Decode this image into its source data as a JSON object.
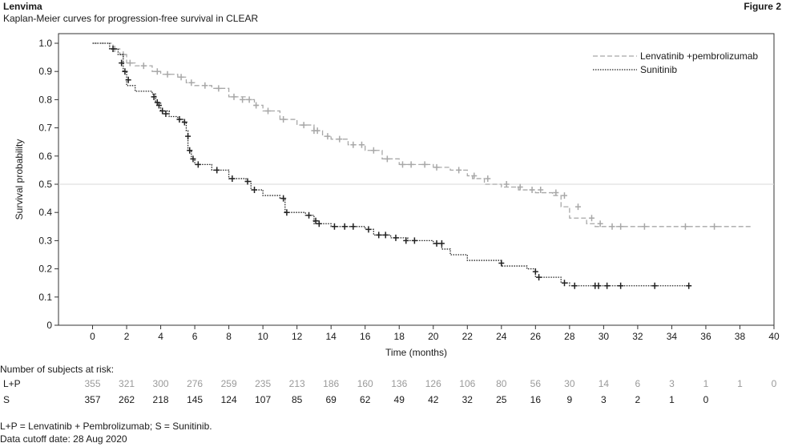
{
  "header": {
    "title": "Lenvima",
    "subtitle": "Kaplan-Meier curves for progression-free survival in CLEAR",
    "figure": "Figure 2"
  },
  "chart_data": {
    "type": "line",
    "xlabel": "Time (months)",
    "ylabel": "Survival probability",
    "xlim": [
      -2,
      40
    ],
    "ylim": [
      0,
      1.0
    ],
    "xticks": [
      0,
      2,
      4,
      6,
      8,
      10,
      12,
      14,
      16,
      18,
      20,
      22,
      24,
      26,
      28,
      30,
      32,
      34,
      36,
      38,
      40
    ],
    "yticks": [
      0,
      0.1,
      0.2,
      0.3,
      0.4,
      0.5,
      0.6,
      0.7,
      0.8,
      0.9,
      1.0
    ],
    "xtick_labels": [
      "0",
      "2",
      "4",
      "6",
      "8",
      "10",
      "12",
      "14",
      "16",
      "18",
      "20",
      "22",
      "24",
      "26",
      "28",
      "30",
      "32",
      "34",
      "36",
      "38",
      "40"
    ],
    "ytick_labels": [
      "0",
      "0.1",
      "0.2",
      "0.3",
      "0.4",
      "0.5",
      "0.6",
      "0.7",
      "0.8",
      "0.9",
      "1.0"
    ],
    "reference_line_y": 0.5,
    "legend_position": "top-right",
    "series": [
      {
        "name": "Lenvatinib +pembrolizumab",
        "color": "#a8a8a8",
        "style": "dashed",
        "x": [
          0,
          1.2,
          1.6,
          2.0,
          2.5,
          3.5,
          4.0,
          5.0,
          5.5,
          6.0,
          7.0,
          8.0,
          9.0,
          9.5,
          10.0,
          11.0,
          12.0,
          13.0,
          13.5,
          14.0,
          15.0,
          16.0,
          17.0,
          18.0,
          18.5,
          20.0,
          21.0,
          22.0,
          22.3,
          23.0,
          24.0,
          25.0,
          26.0,
          27.0,
          27.5,
          28.0,
          29.0,
          29.5,
          30.0,
          32.0,
          34.0,
          36.0,
          38.0,
          38.7
        ],
        "y": [
          1.0,
          0.98,
          0.96,
          0.93,
          0.92,
          0.9,
          0.89,
          0.88,
          0.86,
          0.85,
          0.84,
          0.81,
          0.8,
          0.78,
          0.76,
          0.73,
          0.71,
          0.69,
          0.67,
          0.66,
          0.64,
          0.62,
          0.59,
          0.57,
          0.57,
          0.56,
          0.55,
          0.53,
          0.52,
          0.5,
          0.49,
          0.48,
          0.47,
          0.46,
          0.42,
          0.38,
          0.36,
          0.35,
          0.35,
          0.35,
          0.35,
          0.35,
          0.35,
          0.35
        ],
        "censor_x": [
          1.3,
          1.8,
          2.2,
          3.0,
          3.8,
          4.4,
          5.2,
          5.8,
          6.6,
          7.4,
          8.3,
          8.8,
          9.2,
          9.6,
          10.3,
          11.2,
          12.4,
          13.0,
          13.2,
          13.8,
          14.5,
          15.3,
          15.8,
          16.5,
          17.3,
          18.2,
          18.7,
          19.5,
          20.2,
          21.5,
          22.4,
          23.2,
          24.3,
          25.1,
          25.8,
          26.3,
          27.2,
          27.7,
          28.5,
          29.3,
          29.8,
          30.5,
          31.0,
          32.4,
          34.8,
          36.5
        ],
        "censor_y": [
          0.98,
          0.96,
          0.93,
          0.92,
          0.9,
          0.89,
          0.88,
          0.86,
          0.85,
          0.84,
          0.81,
          0.8,
          0.8,
          0.78,
          0.76,
          0.73,
          0.71,
          0.69,
          0.69,
          0.67,
          0.66,
          0.64,
          0.64,
          0.62,
          0.59,
          0.57,
          0.57,
          0.57,
          0.56,
          0.55,
          0.53,
          0.52,
          0.5,
          0.49,
          0.48,
          0.48,
          0.47,
          0.46,
          0.42,
          0.38,
          0.36,
          0.35,
          0.35,
          0.35,
          0.35,
          0.35
        ]
      },
      {
        "name": "Sunitinib",
        "color": "#222222",
        "style": "dotted",
        "x": [
          0,
          1.0,
          1.5,
          1.8,
          2.0,
          2.5,
          3.0,
          3.5,
          3.7,
          4.0,
          4.5,
          5.0,
          5.3,
          5.5,
          5.6,
          5.8,
          6.0,
          7.0,
          8.0,
          9.0,
          9.3,
          10.0,
          11.0,
          11.3,
          12.5,
          13.0,
          14.0,
          16.0,
          16.5,
          17.5,
          18.5,
          20.0,
          20.5,
          21.0,
          22.0,
          23.5,
          24.0,
          25.5,
          26.0,
          27.5,
          28.0,
          29.0,
          30.0,
          32.0,
          34.0,
          35.0
        ],
        "y": [
          1.0,
          0.98,
          0.96,
          0.9,
          0.85,
          0.83,
          0.83,
          0.82,
          0.79,
          0.76,
          0.74,
          0.73,
          0.72,
          0.69,
          0.62,
          0.59,
          0.57,
          0.55,
          0.52,
          0.51,
          0.48,
          0.46,
          0.45,
          0.4,
          0.39,
          0.36,
          0.35,
          0.34,
          0.32,
          0.31,
          0.3,
          0.29,
          0.27,
          0.25,
          0.23,
          0.23,
          0.21,
          0.2,
          0.17,
          0.15,
          0.14,
          0.14,
          0.14,
          0.14,
          0.14,
          0.14
        ],
        "censor_x": [
          1.2,
          1.7,
          1.9,
          2.1,
          3.6,
          3.8,
          3.9,
          4.1,
          4.3,
          5.1,
          5.4,
          5.6,
          5.7,
          5.9,
          6.2,
          7.3,
          8.2,
          9.1,
          9.5,
          11.2,
          11.4,
          12.7,
          13.1,
          13.3,
          14.2,
          14.8,
          15.3,
          16.2,
          16.8,
          17.2,
          17.8,
          18.4,
          18.9,
          20.2,
          20.5,
          24.0,
          26.0,
          26.2,
          27.7,
          28.3,
          29.5,
          29.7,
          30.2,
          31.0,
          33.0,
          35.0
        ],
        "censor_y": [
          0.98,
          0.93,
          0.9,
          0.87,
          0.81,
          0.79,
          0.78,
          0.76,
          0.75,
          0.73,
          0.72,
          0.67,
          0.62,
          0.59,
          0.57,
          0.55,
          0.52,
          0.51,
          0.48,
          0.45,
          0.4,
          0.39,
          0.37,
          0.36,
          0.35,
          0.35,
          0.35,
          0.34,
          0.32,
          0.32,
          0.31,
          0.3,
          0.3,
          0.29,
          0.29,
          0.22,
          0.19,
          0.17,
          0.15,
          0.14,
          0.14,
          0.14,
          0.14,
          0.14,
          0.14,
          0.14
        ]
      }
    ]
  },
  "risk_table": {
    "heading": "Number of subjects at risk:",
    "times": [
      0,
      2,
      4,
      6,
      8,
      10,
      12,
      14,
      16,
      18,
      20,
      22,
      24,
      26,
      28,
      30,
      32,
      34,
      36,
      38,
      40
    ],
    "rows": [
      {
        "label": "L+P",
        "color": "#9a9a9a",
        "values": [
          "355",
          "321",
          "300",
          "276",
          "259",
          "235",
          "213",
          "186",
          "160",
          "136",
          "126",
          "106",
          "80",
          "56",
          "30",
          "14",
          "6",
          "3",
          "1",
          "1",
          "0"
        ]
      },
      {
        "label": "S",
        "color": "#1a1a1a",
        "values": [
          "357",
          "262",
          "218",
          "145",
          "124",
          "107",
          "85",
          "69",
          "62",
          "49",
          "42",
          "32",
          "25",
          "16",
          "9",
          "3",
          "2",
          "1",
          "0",
          "",
          ""
        ]
      }
    ]
  },
  "footnotes": {
    "abbrev": "L+P = Lenvatinib + Pembrolizumab; S = Sunitinib.",
    "cutoff": "Data cutoff date: 28 Aug 2020"
  }
}
